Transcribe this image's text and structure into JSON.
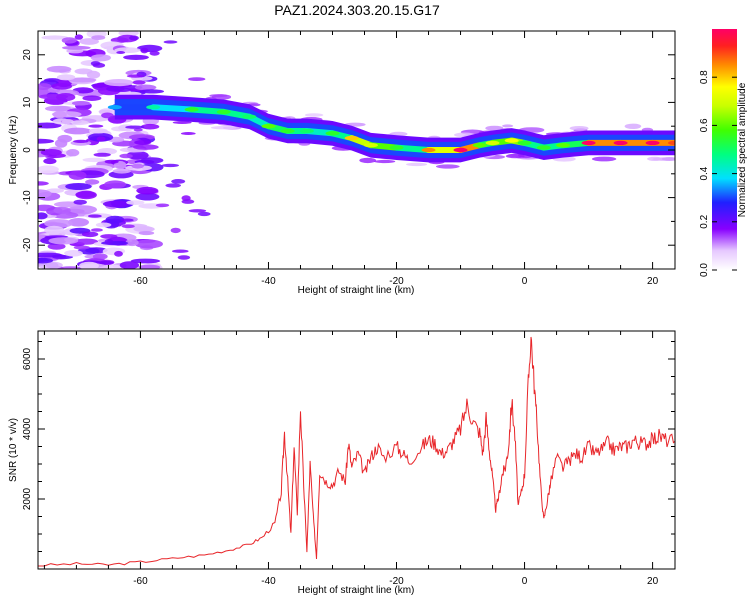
{
  "title": "PAZ1.2024.303.20.15.G17",
  "chart_data": [
    {
      "type": "heatmap",
      "xlabel": "Height of straight line (km)",
      "ylabel": "Frequency (Hz)",
      "xlim": [
        -76,
        23.5
      ],
      "ylim": [
        -25,
        25
      ],
      "x_ticks": [
        -60,
        -40,
        -20,
        0,
        20
      ],
      "y_ticks": [
        -20,
        -10,
        0,
        10,
        20
      ],
      "colorbar": {
        "label": "Normalized spectral amplitude",
        "range": [
          0,
          1
        ],
        "ticks": [
          0.0,
          0.2,
          0.4,
          0.6,
          0.8
        ],
        "tick_labels": [
          "0.0",
          "0.2",
          "0.4",
          "0.6",
          "0.8"
        ]
      },
      "ridge": {
        "x": [
          -64,
          -58,
          -52,
          -47,
          -43,
          -40,
          -37,
          -34,
          -30,
          -27,
          -24,
          -20,
          -15,
          -10,
          -7,
          -5,
          -2,
          0,
          3,
          6,
          10,
          15,
          20,
          23.5
        ],
        "freq": [
          9,
          9,
          8.5,
          8,
          7,
          5,
          4,
          4,
          3.5,
          2.5,
          1,
          0.5,
          0,
          0,
          1,
          1.5,
          2,
          1.5,
          0.5,
          1,
          1.5,
          1.5,
          1.5,
          1.5
        ],
        "amplitude": [
          0.35,
          0.45,
          0.55,
          0.55,
          0.5,
          0.6,
          0.55,
          0.5,
          0.55,
          0.8,
          0.7,
          0.55,
          0.85,
          1.0,
          0.6,
          0.7,
          0.75,
          0.55,
          0.55,
          0.6,
          1.0,
          1.0,
          1.0,
          0.9
        ]
      }
    },
    {
      "type": "line",
      "xlabel": "Height of straight line (km)",
      "ylabel": "SNR (10 * v/v)",
      "xlim": [
        -76,
        23.5
      ],
      "ylim": [
        0,
        6800
      ],
      "x_ticks": [
        -60,
        -40,
        -20,
        0,
        20
      ],
      "y_ticks": [
        2000,
        4000,
        6000
      ],
      "series": [
        {
          "color": "#e8262a",
          "x": [
            -76,
            -70,
            -65,
            -60,
            -55,
            -50,
            -46,
            -43,
            -41,
            -39,
            -38,
            -37.5,
            -37,
            -36.5,
            -36,
            -35.5,
            -35,
            -34.5,
            -34,
            -33.5,
            -33,
            -32.5,
            -32,
            -31,
            -30,
            -29,
            -28,
            -27.5,
            -27,
            -26,
            -25,
            -24,
            -23,
            -22,
            -20,
            -19,
            -18,
            -16,
            -15,
            -14,
            -13,
            -12,
            -11,
            -10,
            -9,
            -8,
            -7,
            -6.5,
            -6,
            -5.5,
            -5,
            -4.5,
            -4,
            -3.5,
            -3,
            -2.5,
            -2,
            -1.5,
            -1,
            -0.5,
            0,
            0.5,
            1,
            1.5,
            2,
            2.5,
            3,
            3.5,
            4,
            5,
            6,
            7,
            8,
            9,
            10,
            11,
            12,
            13,
            14,
            15,
            16,
            17,
            18,
            19,
            20,
            21,
            22,
            23.5
          ],
          "y": [
            100,
            150,
            120,
            200,
            300,
            400,
            550,
            700,
            900,
            1300,
            2200,
            3900,
            2500,
            1000,
            3500,
            1600,
            4600,
            2400,
            500,
            3000,
            1500,
            300,
            2800,
            2500,
            2400,
            2800,
            2500,
            3600,
            2900,
            3300,
            2700,
            3200,
            3500,
            3200,
            3500,
            3300,
            3100,
            3500,
            3700,
            3600,
            3300,
            3400,
            3700,
            4000,
            4700,
            4200,
            3900,
            3300,
            4300,
            3400,
            2600,
            1700,
            2100,
            2700,
            2900,
            3500,
            4800,
            3800,
            1800,
            2200,
            2700,
            5000,
            6700,
            5300,
            4000,
            2400,
            1400,
            1900,
            2400,
            3200,
            2900,
            3100,
            3300,
            3200,
            3500,
            3300,
            3400,
            3600,
            3400,
            3500,
            3500,
            3700,
            3600,
            3600,
            3700,
            3800,
            3700,
            3650
          ]
        }
      ]
    }
  ]
}
